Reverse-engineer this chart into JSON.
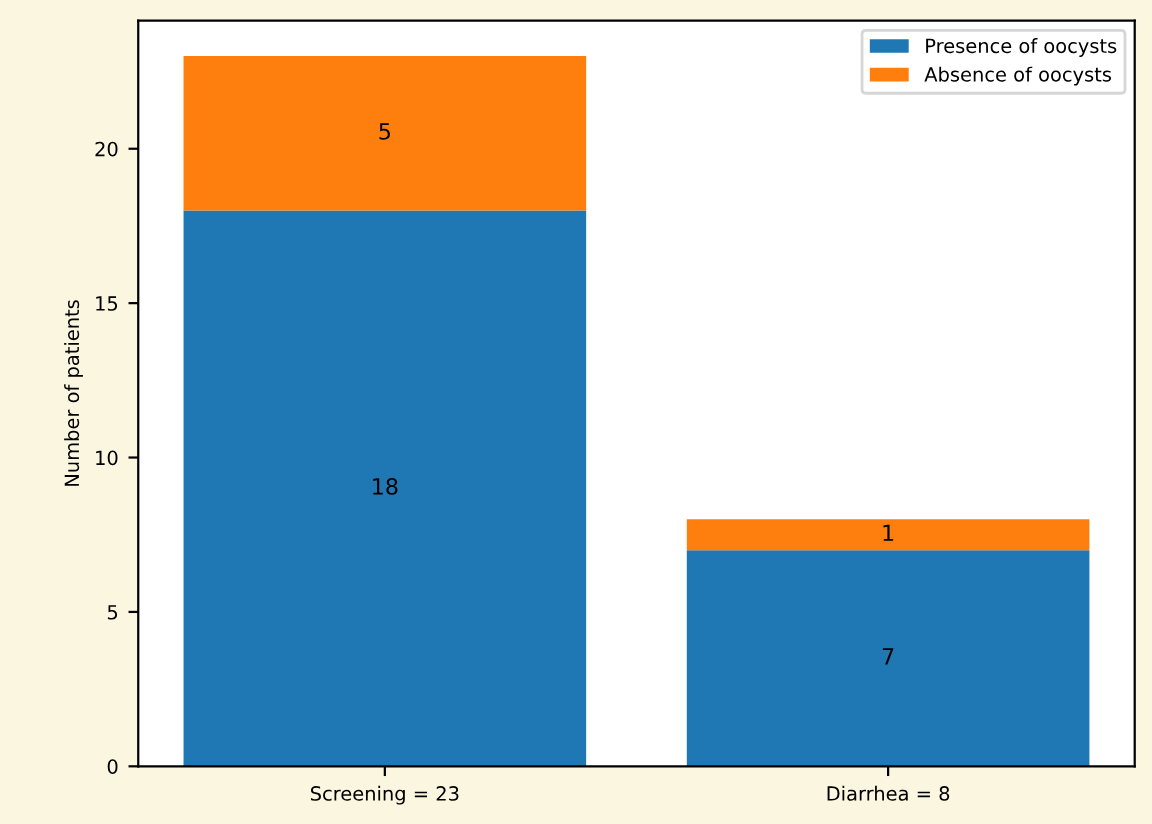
{
  "chart_data": {
    "type": "bar",
    "stacked": true,
    "ylabel": "Number of patients",
    "categories": [
      "Screening = 23",
      "Diarrhea = 8"
    ],
    "series": [
      {
        "name": "Presence of oocysts",
        "color": "#1f77b4",
        "values": [
          18,
          7
        ]
      },
      {
        "name": "Absence of oocysts",
        "color": "#ff7f0e",
        "values": [
          5,
          1
        ]
      }
    ],
    "ylim": [
      0,
      24.15
    ],
    "yticks": [
      0,
      5,
      10,
      15,
      20
    ],
    "data_labels": true,
    "legend": "top right",
    "grid": false
  }
}
